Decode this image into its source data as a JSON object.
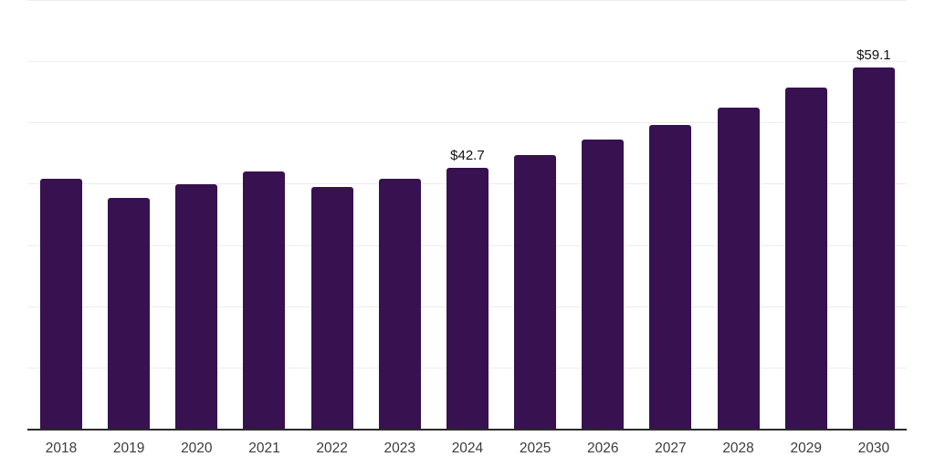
{
  "chart": {
    "background_color": "#ffffff",
    "bar_color": "#371150",
    "axis_line_color": "#2b2b2b",
    "gridline_color": "#ededed",
    "x_label_color": "#3c3c3c",
    "data_label_color": "#111111"
  },
  "chart_data": {
    "type": "bar",
    "title": "",
    "xlabel": "",
    "ylabel": "",
    "categories": [
      "2018",
      "2019",
      "2020",
      "2021",
      "2022",
      "2023",
      "2024",
      "2025",
      "2026",
      "2027",
      "2028",
      "2029",
      "2030"
    ],
    "values": [
      40.9,
      37.9,
      40.1,
      42.1,
      39.6,
      40.9,
      42.7,
      44.9,
      47.3,
      49.8,
      52.6,
      55.9,
      59.1
    ],
    "data_labels": {
      "2024": "$42.7",
      "2030": "$59.1"
    },
    "ylim": [
      0,
      70
    ],
    "gridline_step": 10,
    "grid": "horizontal-only",
    "y_tick_labels_visible": false,
    "legend": "none"
  }
}
